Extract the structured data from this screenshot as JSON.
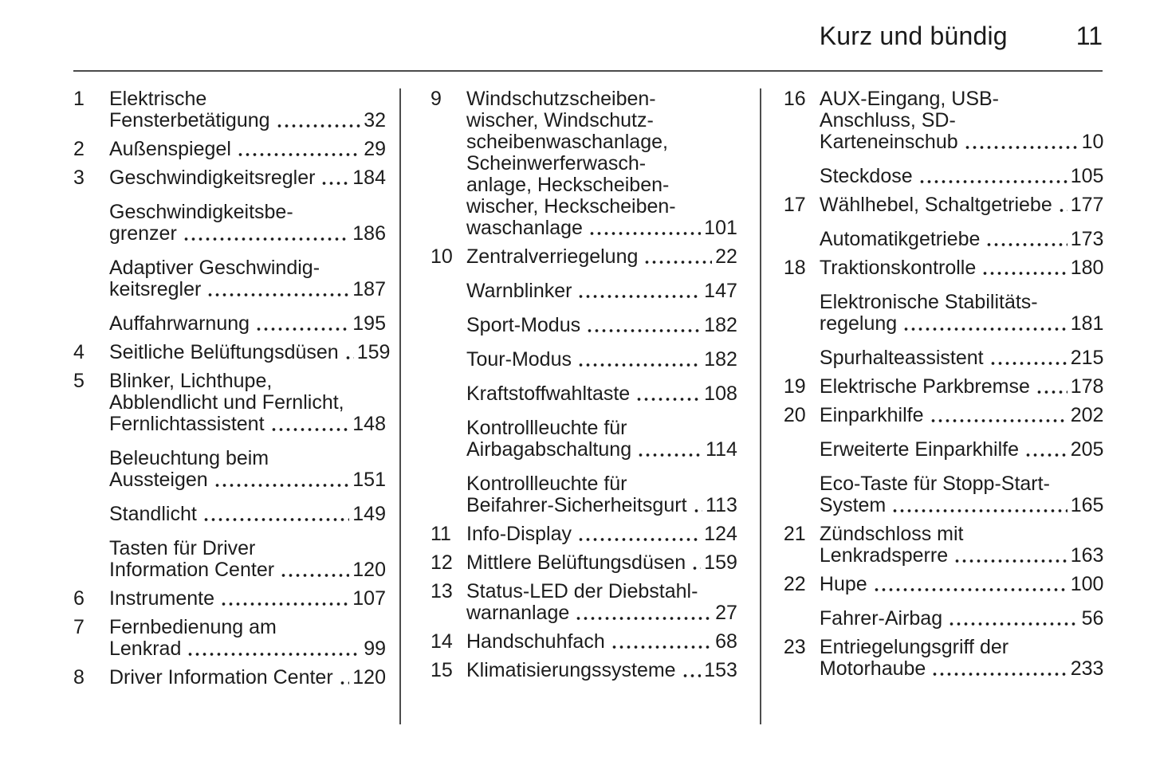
{
  "header": {
    "title": "Kurz und bündig",
    "page_number": "11"
  },
  "colors": {
    "text": "#1c1c1c",
    "rule": "#4a4a4a",
    "background": "#ffffff"
  },
  "index": {
    "columns": [
      {
        "entries": [
          {
            "num": "1",
            "lines": [
              "Elektrische"
            ],
            "tail": "Fensterbetätigung",
            "page": "32"
          },
          {
            "num": "2",
            "lines": [],
            "tail": "Außenspiegel",
            "page": "29"
          },
          {
            "num": "3",
            "lines": [],
            "tail": "Geschwindigkeitsregler",
            "page": "184"
          },
          {
            "num": "",
            "lines": [
              "Geschwindigkeitsbe-"
            ],
            "tail": "grenzer",
            "page": "186"
          },
          {
            "num": "",
            "lines": [
              "Adaptiver Geschwindig-"
            ],
            "tail": "keitsregler",
            "page": "187"
          },
          {
            "num": "",
            "lines": [],
            "tail": "Auffahrwarnung",
            "page": "195"
          },
          {
            "num": "4",
            "lines": [],
            "tail": "Seitliche Belüftungsdüsen",
            "page": "159"
          },
          {
            "num": "5",
            "lines": [
              "Blinker, Lichthupe,",
              "Abblendlicht und Fernlicht,"
            ],
            "tail": "Fernlichtassistent",
            "page": "148"
          },
          {
            "num": "",
            "lines": [
              "Beleuchtung beim"
            ],
            "tail": "Aussteigen",
            "page": "151"
          },
          {
            "num": "",
            "lines": [],
            "tail": "Standlicht",
            "page": "149"
          },
          {
            "num": "",
            "lines": [
              "Tasten für Driver"
            ],
            "tail": "Information Center",
            "page": "120"
          },
          {
            "num": "6",
            "lines": [],
            "tail": "Instrumente",
            "page": "107"
          },
          {
            "num": "7",
            "lines": [
              "Fernbedienung am"
            ],
            "tail": "Lenkrad",
            "page": "99"
          },
          {
            "num": "8",
            "lines": [],
            "tail": "Driver Information Center",
            "page": "120"
          }
        ]
      },
      {
        "entries": [
          {
            "num": "9",
            "lines": [
              "Windschutzscheiben-",
              "wischer, Windschutz-",
              "scheibenwaschanlage,",
              "Scheinwerferwasch-",
              "anlage, Heckscheiben-",
              "wischer, Heckscheiben-"
            ],
            "tail": "waschanlage",
            "page": "101"
          },
          {
            "num": "10",
            "lines": [],
            "tail": "Zentralverriegelung",
            "page": "22"
          },
          {
            "num": "",
            "lines": [],
            "tail": "Warnblinker",
            "page": "147"
          },
          {
            "num": "",
            "lines": [],
            "tail": "Sport-Modus",
            "page": "182"
          },
          {
            "num": "",
            "lines": [],
            "tail": "Tour-Modus",
            "page": "182"
          },
          {
            "num": "",
            "lines": [],
            "tail": "Kraftstoffwahltaste",
            "page": "108"
          },
          {
            "num": "",
            "lines": [
              "Kontrollleuchte für"
            ],
            "tail": "Airbagabschaltung",
            "page": "114"
          },
          {
            "num": "",
            "lines": [
              "Kontrollleuchte für"
            ],
            "tail": "Beifahrer-Sicherheitsgurt",
            "page": "113"
          },
          {
            "num": "11",
            "lines": [],
            "tail": "Info-Display",
            "page": "124"
          },
          {
            "num": "12",
            "lines": [],
            "tail": "Mittlere Belüftungsdüsen",
            "page": "159"
          },
          {
            "num": "13",
            "lines": [
              "Status-LED der Diebstahl-"
            ],
            "tail": "warnanlage",
            "page": "27"
          },
          {
            "num": "14",
            "lines": [],
            "tail": "Handschuhfach",
            "page": "68"
          },
          {
            "num": "15",
            "lines": [],
            "tail": "Klimatisierungssysteme",
            "page": "153"
          }
        ]
      },
      {
        "entries": [
          {
            "num": "16",
            "lines": [
              "AUX-Eingang, USB-",
              "Anschluss, SD-"
            ],
            "tail": "Karteneinschub",
            "page": "10"
          },
          {
            "num": "",
            "lines": [],
            "tail": "Steckdose",
            "page": "105"
          },
          {
            "num": "17",
            "lines": [],
            "tail": "Wählhebel, Schaltgetriebe",
            "page": "177"
          },
          {
            "num": "",
            "lines": [],
            "tail": "Automatikgetriebe",
            "page": "173"
          },
          {
            "num": "18",
            "lines": [],
            "tail": "Traktionskontrolle",
            "page": "180"
          },
          {
            "num": "",
            "lines": [
              "Elektronische Stabilitäts-"
            ],
            "tail": "regelung",
            "page": "181"
          },
          {
            "num": "",
            "lines": [],
            "tail": "Spurhalteassistent",
            "page": "215"
          },
          {
            "num": "19",
            "lines": [],
            "tail": "Elektrische Parkbremse",
            "page": "178"
          },
          {
            "num": "20",
            "lines": [],
            "tail": "Einparkhilfe",
            "page": "202"
          },
          {
            "num": "",
            "lines": [],
            "tail": "Erweiterte Einparkhilfe",
            "page": "205"
          },
          {
            "num": "",
            "lines": [
              "Eco-Taste für Stopp-Start-"
            ],
            "tail": "System",
            "page": "165"
          },
          {
            "num": "21",
            "lines": [
              "Zündschloss mit"
            ],
            "tail": "Lenkradsperre",
            "page": "163"
          },
          {
            "num": "22",
            "lines": [],
            "tail": "Hupe",
            "page": "100"
          },
          {
            "num": "",
            "lines": [],
            "tail": "Fahrer-Airbag",
            "page": "56"
          },
          {
            "num": "23",
            "lines": [
              "Entriegelungsgriff der"
            ],
            "tail": "Motorhaube",
            "page": "233"
          }
        ]
      }
    ]
  }
}
